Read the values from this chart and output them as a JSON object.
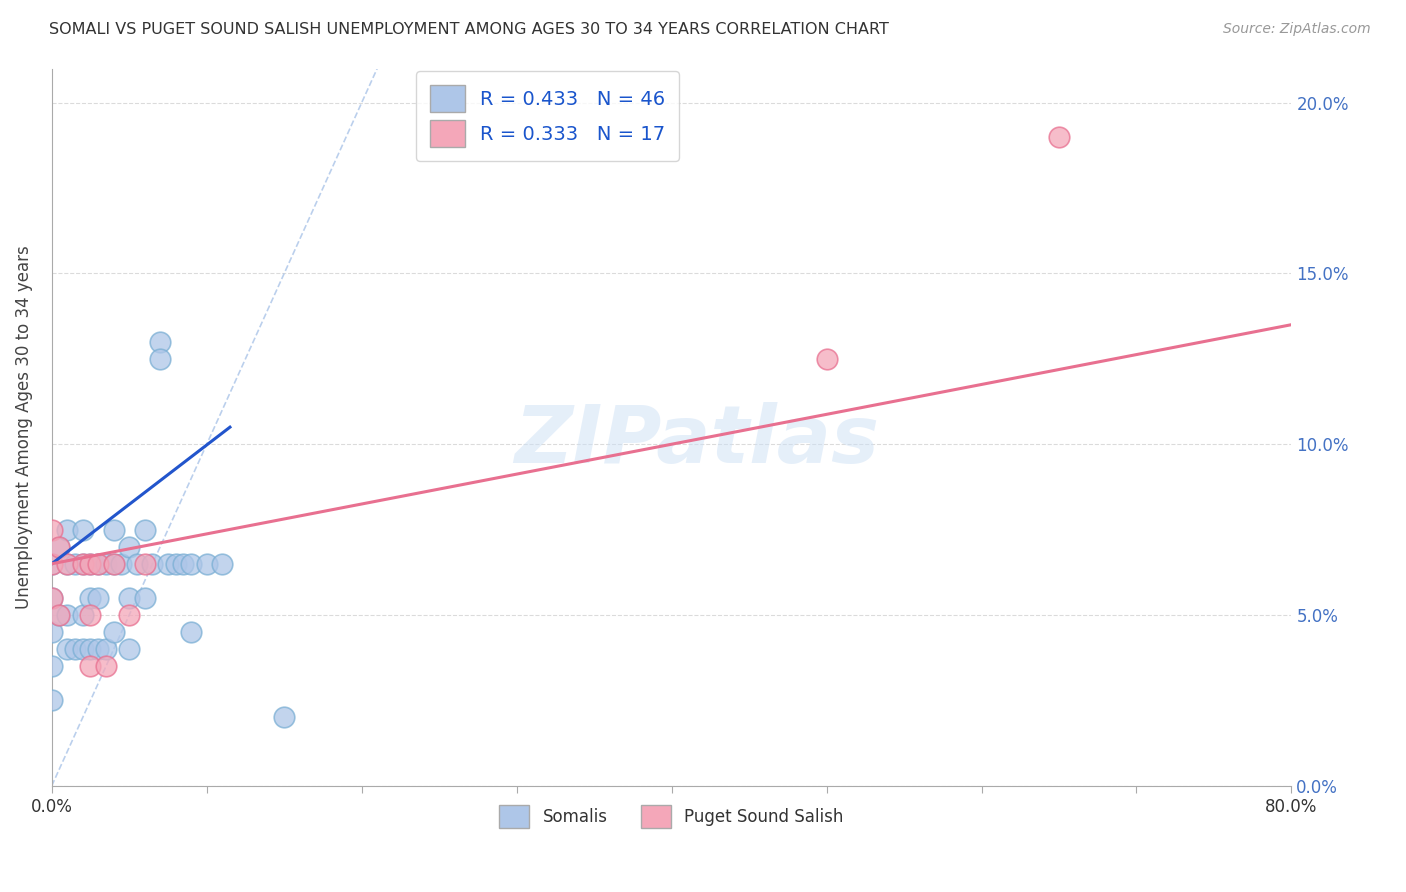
{
  "title": "SOMALI VS PUGET SOUND SALISH UNEMPLOYMENT AMONG AGES 30 TO 34 YEARS CORRELATION CHART",
  "source": "Source: ZipAtlas.com",
  "ylabel": "Unemployment Among Ages 30 to 34 years",
  "xlabel": "",
  "xlim": [
    0.0,
    0.8
  ],
  "ylim": [
    0.0,
    0.21
  ],
  "xticks": [
    0.0,
    0.1,
    0.2,
    0.3,
    0.4,
    0.5,
    0.6,
    0.7,
    0.8
  ],
  "xticklabels": [
    "0.0%",
    "",
    "",
    "",
    "",
    "",
    "",
    "",
    "80.0%"
  ],
  "yticks": [
    0.0,
    0.05,
    0.1,
    0.15,
    0.2
  ],
  "yticklabels_right": [
    "0.0%",
    "5.0%",
    "10.0%",
    "15.0%",
    "20.0%"
  ],
  "somali_color": "#aec6e8",
  "somali_edge": "#7bafd4",
  "pss_color": "#f4a7b9",
  "pss_edge": "#e87090",
  "somali_R": 0.433,
  "somali_N": 46,
  "pss_R": 0.333,
  "pss_N": 17,
  "watermark": "ZIPatlas",
  "somali_line_color": "#2255cc",
  "pss_line_color": "#e87090",
  "ref_line_color": "#aac4e8",
  "bg_color": "#ffffff",
  "grid_color": "#cccccc",
  "somali_x": [
    0.0,
    0.0,
    0.0,
    0.0,
    0.0,
    0.005,
    0.005,
    0.01,
    0.01,
    0.01,
    0.01,
    0.015,
    0.015,
    0.02,
    0.02,
    0.02,
    0.02,
    0.025,
    0.025,
    0.025,
    0.03,
    0.03,
    0.03,
    0.035,
    0.035,
    0.04,
    0.04,
    0.04,
    0.045,
    0.05,
    0.05,
    0.05,
    0.055,
    0.06,
    0.06,
    0.065,
    0.07,
    0.07,
    0.075,
    0.08,
    0.085,
    0.09,
    0.09,
    0.1,
    0.11,
    0.15
  ],
  "somali_y": [
    0.065,
    0.055,
    0.045,
    0.035,
    0.025,
    0.07,
    0.05,
    0.075,
    0.065,
    0.05,
    0.04,
    0.065,
    0.04,
    0.075,
    0.065,
    0.05,
    0.04,
    0.065,
    0.055,
    0.04,
    0.065,
    0.055,
    0.04,
    0.065,
    0.04,
    0.075,
    0.065,
    0.045,
    0.065,
    0.07,
    0.055,
    0.04,
    0.065,
    0.075,
    0.055,
    0.065,
    0.13,
    0.125,
    0.065,
    0.065,
    0.065,
    0.065,
    0.045,
    0.065,
    0.065,
    0.02
  ],
  "pss_x": [
    0.0,
    0.0,
    0.0,
    0.005,
    0.005,
    0.01,
    0.02,
    0.025,
    0.025,
    0.025,
    0.03,
    0.035,
    0.04,
    0.05,
    0.06,
    0.5,
    0.65
  ],
  "pss_y": [
    0.075,
    0.065,
    0.055,
    0.07,
    0.05,
    0.065,
    0.065,
    0.065,
    0.05,
    0.035,
    0.065,
    0.035,
    0.065,
    0.05,
    0.065,
    0.125,
    0.19
  ],
  "somali_trendline_x": [
    0.0,
    0.115
  ],
  "somali_trendline_y": [
    0.065,
    0.105
  ],
  "pss_trendline_x": [
    0.0,
    0.8
  ],
  "pss_trendline_y": [
    0.065,
    0.135
  ],
  "ref_line_x": [
    0.0,
    0.21
  ],
  "ref_line_y": [
    0.0,
    0.21
  ]
}
